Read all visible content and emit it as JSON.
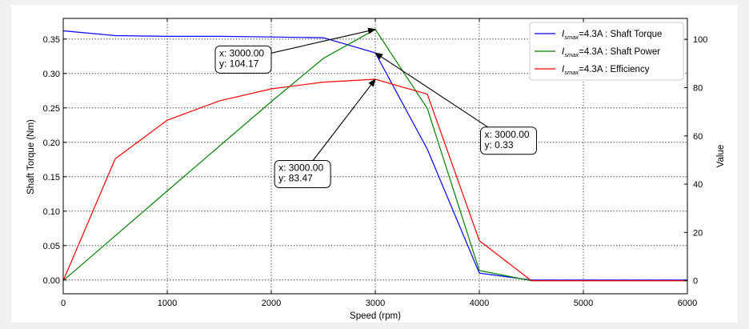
{
  "chart_data": {
    "type": "line",
    "title": "",
    "xlabel": "Speed  (rpm)",
    "ylabel_left": "Shaft Torque  (Nm)",
    "ylabel_right": "Value",
    "xlim": [
      0,
      6000
    ],
    "ylim_left": [
      -0.02,
      0.38
    ],
    "ylim_right": [
      -5.43,
      108.7
    ],
    "xticks": [
      0,
      1000,
      2000,
      3000,
      4000,
      5000,
      6000
    ],
    "yticks_left": [
      0.0,
      0.05,
      0.1,
      0.15,
      0.2,
      0.25,
      0.3,
      0.35
    ],
    "yticks_right": [
      0,
      20,
      40,
      60,
      80,
      100
    ],
    "grid": true,
    "legend_position": "top-right",
    "series": [
      {
        "name": "I_smax = 4.3A : Shaft Torque",
        "legend_symbol": "I",
        "legend_sub": "smax",
        "legend_rest": "=4.3A : Shaft Torque",
        "color": "#0000ff",
        "axis": "left",
        "x": [
          0,
          500,
          1000,
          1500,
          2000,
          2500,
          3000,
          3500,
          4000,
          4500,
          5000,
          5500,
          6000
        ],
        "y": [
          0.362,
          0.355,
          0.354,
          0.354,
          0.353,
          0.352,
          0.33,
          0.19,
          0.01,
          0.0,
          0.0,
          0.0,
          0.0
        ]
      },
      {
        "name": "I_smax = 4.3A : Shaft Power",
        "legend_symbol": "I",
        "legend_sub": "smax",
        "legend_rest": "=4.3A : Shaft Power",
        "color": "#008000",
        "axis": "right",
        "x": [
          0,
          500,
          1000,
          1500,
          2000,
          2500,
          3000,
          3500,
          4000,
          4500,
          5000,
          5500,
          6000
        ],
        "y": [
          0,
          18.6,
          37.2,
          55.7,
          74.2,
          92.1,
          104.17,
          71.4,
          4.2,
          0,
          0,
          0,
          0
        ]
      },
      {
        "name": "I_smax = 4.3A : Efficiency",
        "legend_symbol": "I",
        "legend_sub": "smax",
        "legend_rest": "=4.3A : Efficiency",
        "color": "#ff0000",
        "axis": "right",
        "x": [
          0,
          500,
          1000,
          1500,
          2000,
          2500,
          3000,
          3500,
          4000,
          4500,
          5000,
          5500,
          6000
        ],
        "y": [
          0,
          50.5,
          66.5,
          74.5,
          79.5,
          82.3,
          83.47,
          77.3,
          16.6,
          0,
          0,
          0,
          0
        ]
      }
    ],
    "annotations": [
      {
        "axis": "right",
        "x": 3000,
        "y": 104.17,
        "line1": "x: 3000.00",
        "line2": "y: 104.17",
        "text_at": [
          1500,
          93
        ]
      },
      {
        "axis": "right",
        "x": 3000,
        "y": 83.47,
        "line1": "x: 3000.00",
        "line2": "y: 83.47",
        "text_at": [
          2070,
          45.5
        ]
      },
      {
        "axis": "left",
        "x": 3000,
        "y": 0.33,
        "line1": "x: 3000.00",
        "line2": "y: 0.33",
        "text_at": [
          4050,
          0.207
        ]
      }
    ]
  }
}
